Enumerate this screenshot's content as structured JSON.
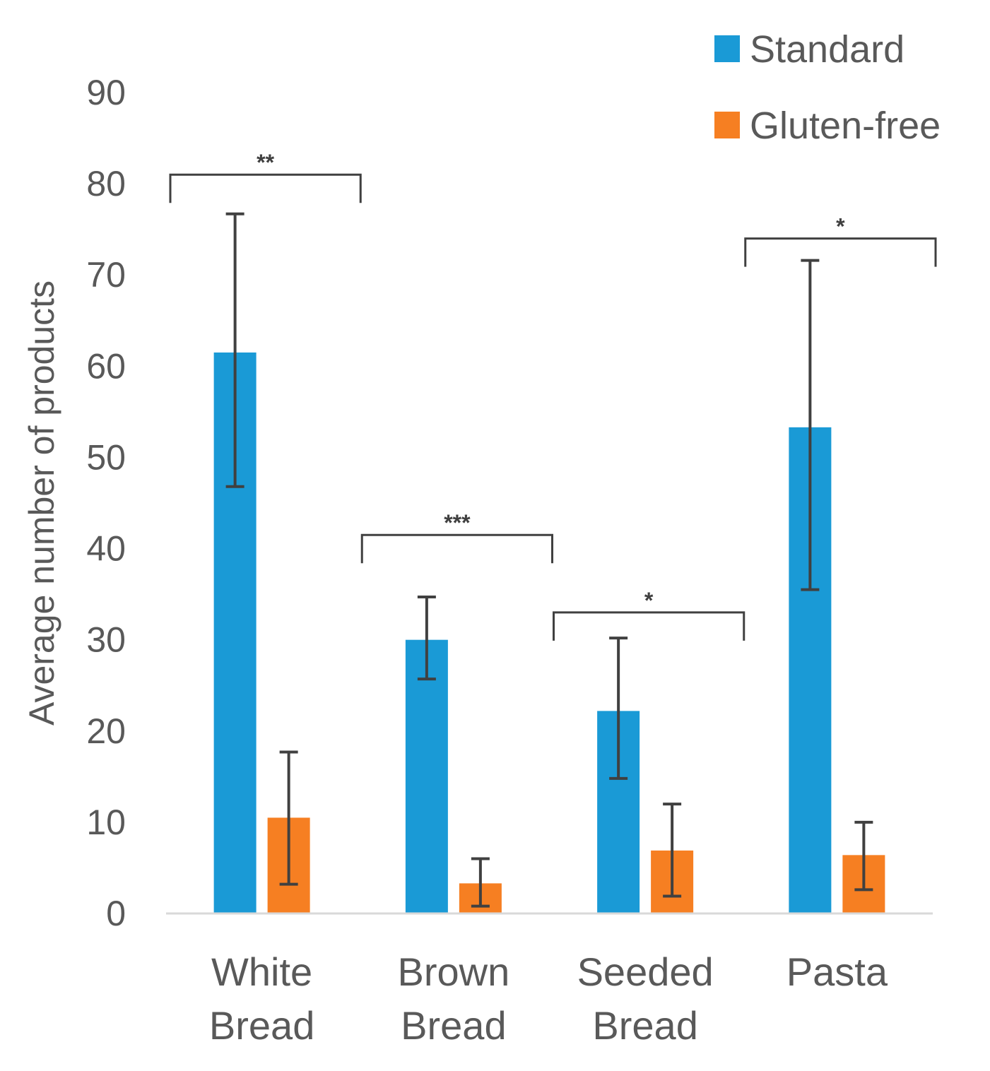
{
  "chart_data": {
    "type": "bar",
    "title": "",
    "xlabel": "",
    "ylabel": "Average number of products",
    "ylim": [
      0,
      90
    ],
    "yticks": [
      0,
      10,
      20,
      30,
      40,
      50,
      60,
      70,
      80,
      90
    ],
    "grid": false,
    "legend_position": "top-right",
    "categories": [
      [
        "White",
        "Bread"
      ],
      [
        "Brown",
        "Bread"
      ],
      [
        "Seeded",
        "Bread"
      ],
      [
        "Pasta"
      ]
    ],
    "series": [
      {
        "name": "Standard",
        "color": "#1a9ad6",
        "values": [
          61.5,
          30,
          22.2,
          53.3
        ],
        "error_low": [
          46.8,
          25.7,
          14.8,
          35.5
        ],
        "error_high": [
          76.7,
          34.7,
          30.2,
          71.6
        ]
      },
      {
        "name": "Gluten-free",
        "color": "#f67f22",
        "values": [
          10.5,
          3.3,
          6.9,
          6.4
        ],
        "error_low": [
          3.2,
          0.8,
          1.9,
          2.6
        ],
        "error_high": [
          17.7,
          6,
          12,
          10
        ]
      }
    ],
    "significance": [
      {
        "category": 0,
        "label": "**",
        "value": 81
      },
      {
        "category": 1,
        "label": "***",
        "value": 41.5
      },
      {
        "category": 2,
        "label": "*",
        "value": 33
      },
      {
        "category": 3,
        "label": "*",
        "value": 74
      }
    ]
  },
  "colors": {
    "axis": "#d9d9d9",
    "error_bar": "#404040",
    "bracket": "#404040",
    "text": "#595959"
  }
}
